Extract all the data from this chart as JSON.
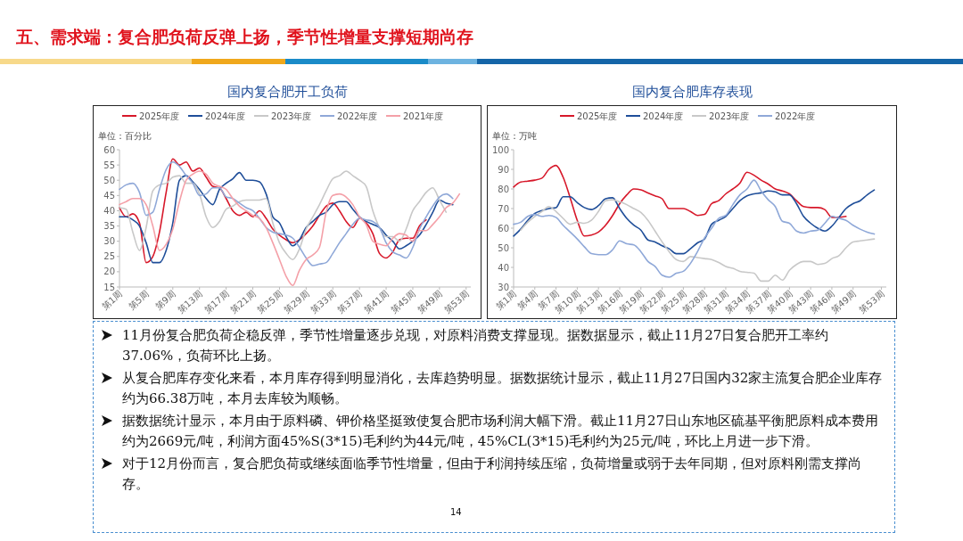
{
  "chart_data": [
    {
      "type": "other",
      "title": "五、需求端：复合肥负荷反弹上扬，季节性增量支撑短期尚存"
    },
    {
      "type": "line",
      "title": "国内复合肥开工负荷",
      "ylabel": "单位：百分比",
      "legend": "top",
      "grid": false,
      "ylim": [
        15,
        60
      ],
      "yticks": [
        15,
        20,
        25,
        30,
        35,
        40,
        45,
        50,
        55,
        60
      ],
      "categories": [
        "第1周",
        null,
        null,
        null,
        "第5周",
        null,
        null,
        null,
        "第9周",
        null,
        null,
        null,
        "第13周",
        null,
        null,
        null,
        "第17周",
        null,
        null,
        null,
        "第21周",
        null,
        null,
        null,
        "第25周",
        null,
        null,
        null,
        "第29周",
        null,
        null,
        null,
        "第33周",
        null,
        null,
        null,
        "第37周",
        null,
        null,
        null,
        "第41周",
        null,
        null,
        null,
        "第45周",
        null,
        null,
        null,
        "第49周",
        null,
        null,
        null,
        "第53周"
      ],
      "series": [
        {
          "name": "2025年度",
          "color": "#d7182a",
          "values": [
            41,
            38,
            39,
            36,
            23,
            25,
            33,
            46,
            57,
            55,
            56,
            53,
            54,
            51,
            48,
            47.5,
            44,
            40,
            38.5,
            39.5,
            38,
            40,
            37.5,
            34,
            32,
            30.5,
            29.5,
            30.5,
            32.5,
            35,
            38.5,
            41.5,
            42.5,
            40,
            36.5,
            34.5,
            37.5,
            36,
            32.5,
            26,
            24.5,
            26.5,
            30.5,
            31,
            31,
            35,
            37,
            null,
            null,
            null,
            null,
            null,
            null
          ]
        },
        {
          "name": "2024年度",
          "color": "#1f4e99",
          "values": [
            38,
            38,
            37,
            35,
            29.5,
            23,
            23,
            27,
            36,
            50,
            51.5,
            49.5,
            47,
            44,
            42,
            47,
            49,
            50.5,
            52.5,
            50,
            50,
            49.5,
            45.5,
            38,
            36,
            31.5,
            28.5,
            30.5,
            34.5,
            36.5,
            38.5,
            39.5,
            42,
            43,
            43,
            40.5,
            38,
            36.5,
            35.5,
            34.5,
            32,
            30,
            27.5,
            28.5,
            30,
            32,
            35.5,
            39.5,
            43.5,
            42.5,
            42,
            null,
            null
          ]
        },
        {
          "name": "2023年度",
          "color": "#c8c8c8",
          "values": [
            41,
            40.5,
            33,
            27,
            34.5,
            46.5,
            48.5,
            49,
            51,
            51.5,
            49,
            49,
            45.5,
            38,
            34.5,
            36.5,
            40.5,
            41.5,
            43,
            43.5,
            43.5,
            43.5,
            44,
            36,
            29.5,
            26,
            24,
            27.5,
            34,
            38,
            42,
            46.5,
            50.5,
            51.5,
            53,
            51.5,
            50,
            48,
            40,
            34.5,
            31.5,
            31.5,
            30,
            34,
            40,
            43,
            46,
            47.5,
            43.5,
            39.5,
            null,
            null,
            null
          ]
        },
        {
          "name": "2022年度",
          "color": "#8fa8d8",
          "values": [
            47,
            48.5,
            49,
            46,
            38.5,
            39.5,
            47,
            53.5,
            56,
            54.5,
            51.5,
            49,
            45,
            45.5,
            47.5,
            47.5,
            44.5,
            44,
            42.5,
            41,
            40,
            37.5,
            34.5,
            33,
            32.5,
            32,
            31,
            28,
            24.5,
            22,
            22.5,
            23,
            26,
            29.5,
            32.5,
            35.5,
            37.5,
            37,
            36.5,
            34.5,
            29.5,
            26.5,
            25.5,
            24.5,
            28,
            34,
            38,
            41.5,
            44.5,
            45.5,
            44,
            null,
            null
          ]
        },
        {
          "name": "2021年度",
          "color": "#f4a0a8",
          "values": [
            42,
            43,
            44,
            44,
            42,
            35,
            27,
            29,
            34,
            43,
            50,
            52,
            53,
            52,
            49,
            48,
            47,
            44,
            41.5,
            40,
            38.5,
            37.5,
            34.5,
            29.5,
            24,
            18.5,
            15.5,
            20.5,
            24,
            25.5,
            28,
            39.5,
            45,
            45.5,
            44.5,
            42,
            38,
            35.5,
            30,
            29,
            28.5,
            31,
            32.5,
            32,
            30,
            33.5,
            33.5,
            35.5,
            38,
            41,
            42.5,
            45.5,
            null
          ]
        }
      ]
    },
    {
      "type": "line",
      "title": "国内复合肥库存表现",
      "ylabel": "单位：万吨",
      "legend": "top",
      "grid": false,
      "ylim": [
        30,
        100
      ],
      "yticks": [
        30,
        40,
        50,
        60,
        70,
        80,
        90,
        100
      ],
      "categories": [
        "第1周",
        null,
        null,
        "第4周",
        null,
        null,
        "第7周",
        null,
        null,
        "第10周",
        null,
        null,
        "第13周",
        null,
        null,
        "第16周",
        null,
        null,
        "第19周",
        null,
        null,
        "第22周",
        null,
        null,
        "第25周",
        null,
        null,
        "第28周",
        null,
        null,
        "第31周",
        null,
        null,
        "第34周",
        null,
        null,
        "第37周",
        null,
        null,
        "第40周",
        null,
        null,
        "第43周",
        null,
        null,
        "第46周",
        null,
        null,
        "第49周",
        null,
        null,
        null,
        "第53周"
      ],
      "series": [
        {
          "name": "2025年度",
          "color": "#d7182a",
          "values": [
            81,
            83.5,
            84,
            84.5,
            85.5,
            90,
            92,
            86,
            75.5,
            64,
            56,
            56.5,
            58,
            61.5,
            66.5,
            72.5,
            77,
            80,
            79.5,
            78,
            76.5,
            75,
            70,
            70,
            70,
            68.5,
            66.5,
            67,
            72.5,
            74,
            77.5,
            80,
            83,
            88.5,
            87,
            84.5,
            82.5,
            80,
            79,
            77.5,
            74,
            71,
            70.5,
            70.5,
            69.5,
            65.5,
            65.5,
            66,
            null,
            null,
            null,
            null,
            null
          ]
        },
        {
          "name": "2024年度",
          "color": "#1f4e99",
          "values": [
            56,
            59.5,
            64,
            67.5,
            69,
            70,
            70.5,
            76,
            76,
            73,
            70.5,
            69.5,
            71.5,
            75,
            75.5,
            70,
            65,
            61.5,
            59,
            54,
            53,
            51,
            49.5,
            47,
            47,
            49.5,
            52.5,
            54.5,
            62,
            64,
            66,
            70,
            74,
            76.5,
            77.5,
            78,
            79,
            78.5,
            77,
            77,
            72.5,
            66,
            62.5,
            60,
            58.5,
            61,
            65.5,
            70,
            72.5,
            74,
            77,
            79.5,
            null
          ]
        },
        {
          "name": "2023年度",
          "color": "#c8c8c8",
          "values": [
            null,
            59,
            63,
            66,
            68.5,
            71,
            68.5,
            65,
            62,
            63,
            62.5,
            64,
            68.5,
            74,
            74.5,
            73.5,
            72,
            70,
            68,
            64,
            58.5,
            53,
            48,
            44,
            43,
            45.5,
            45,
            44.5,
            44,
            42.5,
            40.5,
            39.5,
            38,
            37.5,
            37,
            33,
            33,
            36,
            33.5,
            38.5,
            41.5,
            43,
            43,
            41.5,
            42,
            44.5,
            46,
            50,
            53,
            53.5,
            54,
            54.5,
            null
          ]
        },
        {
          "name": "2022年度",
          "color": "#8fa8d8",
          "values": [
            62,
            63,
            66,
            67,
            66,
            66.5,
            65.5,
            61.5,
            58,
            54.5,
            50.5,
            47,
            46.5,
            46.5,
            49,
            53.5,
            52,
            51.5,
            48,
            43,
            40.5,
            36,
            35,
            37,
            38,
            42,
            48,
            55,
            60,
            65,
            66.5,
            72,
            77,
            80,
            84.5,
            79,
            74.5,
            71,
            63.5,
            62.5,
            58.5,
            57.5,
            58.5,
            59,
            62.5,
            66,
            65,
            64,
            61.5,
            59.5,
            58,
            57,
            null
          ]
        }
      ]
    },
    {
      "type": "other",
      "annotations": [
        "11月份复合肥负荷企稳反弹，季节性增量逐步兑现，对原料消费支撑显现。据数据显示，截止11月27日复合肥开工率约37.06%，负荷环比上扬。",
        "从复合肥库存变化来看，本月库存得到明显消化，去库趋势明显。据数据统计显示，截止11月27日国内32家主流复合肥企业库存约为66.38万吨，本月去库较为顺畅。",
        "据数据统计显示，本月由于原料磷、钾价格坚挺致使复合肥市场利润大幅下滑。截止11月27日山东地区硫基平衡肥原料成本费用约为2669元/吨，利润方面45%S(3*15)毛利约为44元/吨，45%CL(3*15)毛利约为25元/吨，环比上月进一步下滑。",
        "对于12月份而言，复合肥负荷或继续面临季节性增量，但由于利润持续压缩，负荷增量或弱于去年同期，但对原料刚需支撑尚存。",
        "14"
      ]
    }
  ]
}
